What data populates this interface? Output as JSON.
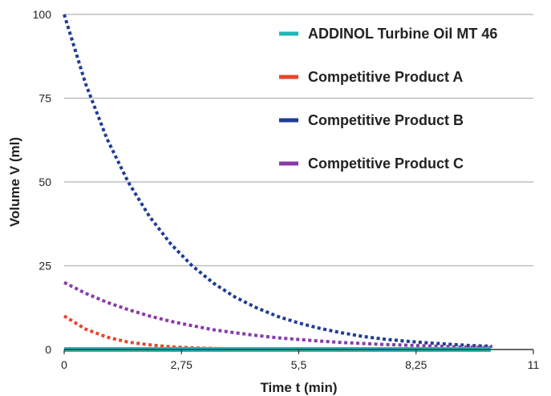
{
  "chart_data": {
    "type": "line",
    "xlabel": "Time t (min)",
    "ylabel": "Volume V (ml)",
    "xlim": [
      0,
      11
    ],
    "ylim": [
      0,
      100
    ],
    "x_ticks": [
      0,
      2.75,
      5.5,
      8.25,
      11
    ],
    "x_tick_labels": [
      "0",
      "2,75",
      "5,5",
      "8,25",
      "11"
    ],
    "y_ticks": [
      0,
      25,
      50,
      75,
      100
    ],
    "y_tick_labels": [
      "0",
      "25",
      "50",
      "75",
      "100"
    ],
    "grid": "horizontal",
    "legend_position": "top-right",
    "series": [
      {
        "name": "ADDINOL Turbine Oil MT 46",
        "color": "#1fb8b8",
        "style": "solid",
        "x": [
          0,
          1,
          2,
          3,
          4,
          5,
          6,
          7,
          8,
          9,
          10,
          11
        ],
        "y": [
          0,
          0,
          0,
          0,
          0,
          0,
          0,
          0,
          0,
          0,
          0,
          0
        ]
      },
      {
        "name": "Competitive Product A",
        "color": "#e8452c",
        "style": "dotted",
        "x": [
          0,
          0.5,
          1,
          1.5,
          2,
          2.5,
          3,
          3.5,
          4,
          5,
          6,
          7,
          8,
          9,
          10,
          11
        ],
        "y": [
          10,
          6.1,
          3.7,
          2.2,
          1.4,
          0.8,
          0.5,
          0.3,
          0.2,
          0.1,
          0,
          0,
          0,
          0,
          0,
          0
        ]
      },
      {
        "name": "Competitive Product B",
        "color": "#1f3c96",
        "style": "dotted",
        "x": [
          0,
          0.5,
          1,
          1.5,
          2,
          2.5,
          3,
          3.5,
          4,
          4.5,
          5,
          5.5,
          6,
          6.5,
          7,
          7.5,
          8,
          8.5,
          9,
          9.5,
          10,
          10.5,
          11
        ],
        "y": [
          100,
          79.4,
          63.0,
          50.0,
          39.7,
          31.5,
          25.0,
          19.8,
          15.7,
          12.5,
          9.9,
          7.9,
          6.3,
          5.0,
          3.9,
          3.1,
          2.5,
          2.0,
          1.6,
          1.2,
          1.0,
          0.8,
          0.6
        ]
      },
      {
        "name": "Competitive Product C",
        "color": "#8a3aa8",
        "style": "dotted",
        "x": [
          0,
          0.5,
          1,
          1.5,
          2,
          2.5,
          3,
          3.5,
          4,
          4.5,
          5,
          5.5,
          6,
          6.5,
          7,
          7.5,
          8,
          8.5,
          9,
          9.5,
          10,
          10.5,
          11
        ],
        "y": [
          20,
          16.8,
          14.1,
          11.9,
          10.0,
          8.4,
          7.1,
          5.9,
          5.0,
          4.2,
          3.5,
          3.0,
          2.5,
          2.1,
          1.8,
          1.5,
          1.3,
          1.1,
          0.9,
          0.7,
          0.6,
          0.5,
          0.45
        ]
      }
    ]
  }
}
